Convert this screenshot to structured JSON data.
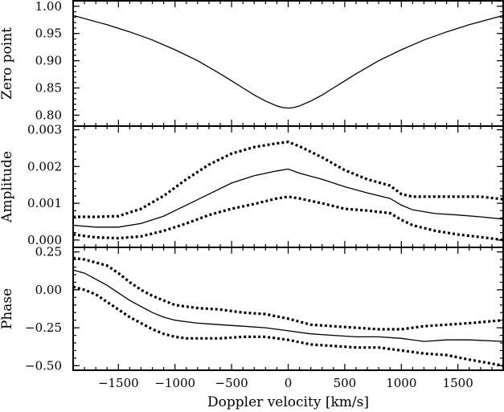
{
  "chart_data": [
    {
      "type": "line",
      "ylabel": "Zero point",
      "xlim": [
        -1900,
        1900
      ],
      "ylim": [
        0.78,
        1.01
      ],
      "yticks": [
        0.8,
        0.85,
        0.9,
        0.95,
        1.0
      ],
      "ytick_labels": [
        "0.80",
        "0.85",
        "0.90",
        "0.95",
        "1.00"
      ],
      "series": [
        {
          "style": "solid",
          "x": [
            -1900,
            -1600,
            -1400,
            -1200,
            -1000,
            -800,
            -600,
            -500,
            -400,
            -300,
            -200,
            -100,
            -50,
            0,
            50,
            100,
            200,
            300,
            400,
            500,
            600,
            800,
            1000,
            1200,
            1400,
            1600,
            1900
          ],
          "y": [
            0.983,
            0.966,
            0.953,
            0.938,
            0.92,
            0.9,
            0.876,
            0.863,
            0.85,
            0.837,
            0.826,
            0.817,
            0.814,
            0.813,
            0.814,
            0.817,
            0.826,
            0.837,
            0.85,
            0.863,
            0.876,
            0.9,
            0.92,
            0.938,
            0.953,
            0.966,
            0.983
          ]
        }
      ]
    },
    {
      "type": "line",
      "ylabel": "Amplitude",
      "xlim": [
        -1900,
        1900
      ],
      "ylim": [
        -0.0002,
        0.0031
      ],
      "yticks": [
        0.0,
        0.001,
        0.002,
        0.003
      ],
      "ytick_labels": [
        "0.000",
        "0.001",
        "0.002",
        "0.003"
      ],
      "series": [
        {
          "style": "solid",
          "x": [
            -1900,
            -1700,
            -1500,
            -1300,
            -1100,
            -900,
            -700,
            -500,
            -300,
            -100,
            0,
            100,
            300,
            500,
            700,
            900,
            1000,
            1100,
            1300,
            1500,
            1700,
            1900
          ],
          "y": [
            0.0004,
            0.00035,
            0.00035,
            0.00045,
            0.00065,
            0.00095,
            0.00125,
            0.00155,
            0.00175,
            0.00188,
            0.00193,
            0.00182,
            0.00165,
            0.00145,
            0.00128,
            0.00113,
            0.00095,
            0.00082,
            0.00072,
            0.00068,
            0.00063,
            0.00057
          ]
        },
        {
          "style": "dotted",
          "x": [
            -1900,
            -1700,
            -1500,
            -1300,
            -1100,
            -900,
            -700,
            -500,
            -300,
            -100,
            0,
            100,
            300,
            500,
            700,
            900,
            1000,
            1100,
            1300,
            1500,
            1700,
            1900
          ],
          "y": [
            0.00063,
            0.00063,
            0.00065,
            0.00085,
            0.0012,
            0.00165,
            0.00205,
            0.00235,
            0.00253,
            0.00263,
            0.00267,
            0.00255,
            0.00225,
            0.0019,
            0.00165,
            0.00148,
            0.00125,
            0.00118,
            0.00118,
            0.00118,
            0.00118,
            0.00111
          ]
        },
        {
          "style": "dotted",
          "x": [
            -1900,
            -1700,
            -1500,
            -1300,
            -1100,
            -900,
            -700,
            -500,
            -300,
            -100,
            0,
            100,
            300,
            500,
            700,
            900,
            1000,
            1100,
            1300,
            1500,
            1700,
            1900
          ],
          "y": [
            0.00015,
            7e-05,
            5e-05,
            0.0001,
            0.00025,
            0.00045,
            0.00068,
            0.00085,
            0.00098,
            0.00113,
            0.00118,
            0.00113,
            0.001,
            0.00085,
            0.0008,
            0.00073,
            0.00055,
            0.0004,
            0.00025,
            0.00015,
            8e-05,
            0.0
          ]
        }
      ]
    },
    {
      "type": "line",
      "xlabel": "Doppler velocity [km/s]",
      "ylabel": "Phase",
      "xlim": [
        -1900,
        1900
      ],
      "ylim": [
        -0.53,
        0.28
      ],
      "xticks": [
        -1500,
        -1000,
        -500,
        0,
        500,
        1000,
        1500
      ],
      "xtick_labels": [
        "−1500",
        "−1000",
        "−500",
        "0",
        "500",
        "1000",
        "1500"
      ],
      "yticks": [
        -0.5,
        -0.25,
        0.0,
        0.25
      ],
      "ytick_labels": [
        "−0.50",
        "−0.25",
        "0.00",
        "0.25"
      ],
      "series": [
        {
          "style": "solid",
          "x": [
            -1900,
            -1800,
            -1700,
            -1600,
            -1500,
            -1400,
            -1300,
            -1200,
            -1100,
            -1000,
            -900,
            -800,
            -600,
            -400,
            -200,
            0,
            200,
            400,
            600,
            800,
            1000,
            1200,
            1400,
            1600,
            1900
          ],
          "y": [
            0.13,
            0.11,
            0.07,
            0.03,
            -0.02,
            -0.07,
            -0.11,
            -0.15,
            -0.18,
            -0.2,
            -0.21,
            -0.22,
            -0.23,
            -0.24,
            -0.25,
            -0.27,
            -0.29,
            -0.3,
            -0.31,
            -0.31,
            -0.32,
            -0.34,
            -0.33,
            -0.33,
            -0.34
          ]
        },
        {
          "style": "dotted",
          "x": [
            -1900,
            -1800,
            -1700,
            -1600,
            -1500,
            -1400,
            -1300,
            -1200,
            -1100,
            -1000,
            -900,
            -800,
            -600,
            -400,
            -200,
            0,
            200,
            400,
            600,
            800,
            1000,
            1200,
            1400,
            1600,
            1900
          ],
          "y": [
            0.21,
            0.2,
            0.18,
            0.16,
            0.11,
            0.05,
            0.0,
            -0.04,
            -0.07,
            -0.1,
            -0.11,
            -0.12,
            -0.13,
            -0.15,
            -0.16,
            -0.19,
            -0.23,
            -0.24,
            -0.25,
            -0.26,
            -0.26,
            -0.24,
            -0.23,
            -0.22,
            -0.2
          ]
        },
        {
          "style": "dotted",
          "x": [
            -1900,
            -1800,
            -1700,
            -1600,
            -1500,
            -1400,
            -1300,
            -1200,
            -1100,
            -1000,
            -900,
            -800,
            -600,
            -400,
            -200,
            0,
            200,
            400,
            600,
            800,
            1000,
            1200,
            1400,
            1600,
            1900
          ],
          "y": [
            0.02,
            0.0,
            -0.03,
            -0.08,
            -0.13,
            -0.18,
            -0.22,
            -0.26,
            -0.29,
            -0.31,
            -0.32,
            -0.32,
            -0.32,
            -0.31,
            -0.31,
            -0.33,
            -0.36,
            -0.37,
            -0.38,
            -0.38,
            -0.4,
            -0.42,
            -0.43,
            -0.46,
            -0.5
          ]
        }
      ]
    }
  ]
}
